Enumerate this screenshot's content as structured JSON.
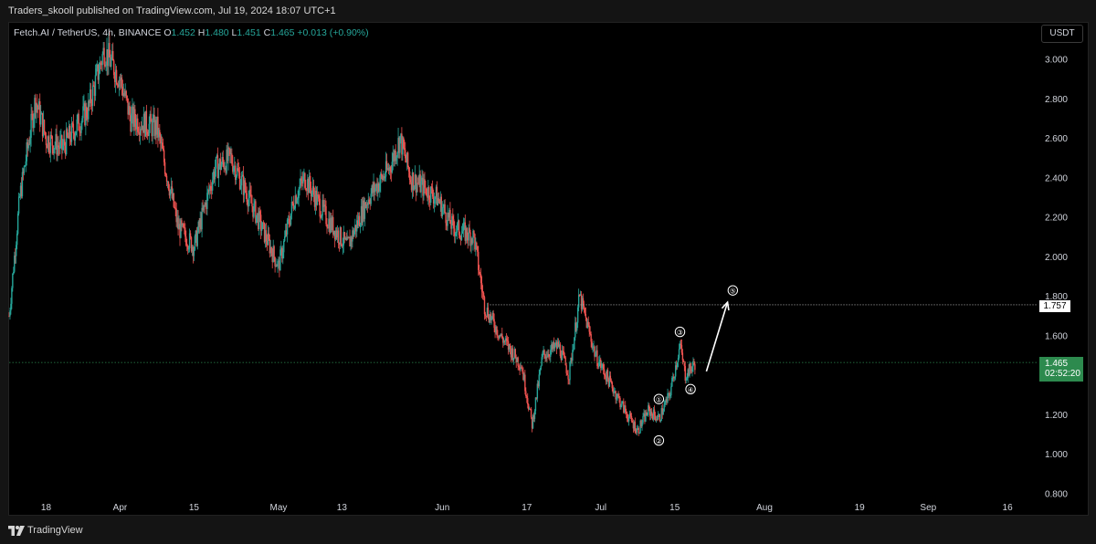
{
  "header": {
    "published_text": "Traders_skooll published on TradingView.com, Jul 19, 2024 18:07 UTC+1"
  },
  "symbol": {
    "name": "Fetch.AI / TetherUS, 4h, BINANCE",
    "open_label": "O",
    "open": "1.452",
    "high_label": "H",
    "high": "1.480",
    "low_label": "L",
    "low": "1.451",
    "close_label": "C",
    "close": "1.465",
    "change": "+0.013 (+0.90%)"
  },
  "currency_button": "USDT",
  "price_labels": {
    "reference": "1.757",
    "last_price": "1.465",
    "countdown": "02:52:20"
  },
  "footer": {
    "brand": "TradingView"
  },
  "colors": {
    "up": "#26a69a",
    "down": "#ef5350",
    "background": "#000000",
    "last_price_badge": "#2d8a4e"
  },
  "chart_data": {
    "type": "candlestick",
    "x_tick_labels": [
      "18",
      "Apr",
      "15",
      "May",
      "13",
      "Jun",
      "17",
      "Jul",
      "15",
      "Aug",
      "19",
      "Sep",
      "16"
    ],
    "y_tick_labels": [
      "3.000",
      "2.800",
      "2.600",
      "2.400",
      "2.200",
      "2.000",
      "1.800",
      "1.600",
      "1.400",
      "1.200",
      "1.000",
      "0.800"
    ],
    "y_ticks": [
      3.0,
      2.8,
      2.6,
      2.4,
      2.2,
      2.0,
      1.8,
      1.6,
      1.4,
      1.2,
      1.0,
      0.8
    ],
    "ylim": [
      0.8,
      3.2
    ],
    "x_start": "2024-03-11",
    "x_end": "2024-09-21",
    "last_close": 1.465,
    "reference_level": 1.757,
    "price_path": [
      {
        "date": "2024-03-11",
        "price": 1.7
      },
      {
        "date": "2024-03-13",
        "price": 2.3
      },
      {
        "date": "2024-03-16",
        "price": 2.8
      },
      {
        "date": "2024-03-18",
        "price": 2.6
      },
      {
        "date": "2024-03-21",
        "price": 2.55
      },
      {
        "date": "2024-03-26",
        "price": 2.75
      },
      {
        "date": "2024-03-29",
        "price": 3.05
      },
      {
        "date": "2024-04-01",
        "price": 2.9
      },
      {
        "date": "2024-04-03",
        "price": 2.7
      },
      {
        "date": "2024-04-08",
        "price": 2.65
      },
      {
        "date": "2024-04-12",
        "price": 2.15
      },
      {
        "date": "2024-04-15",
        "price": 2.05
      },
      {
        "date": "2024-04-19",
        "price": 2.45
      },
      {
        "date": "2024-04-22",
        "price": 2.5
      },
      {
        "date": "2024-04-27",
        "price": 2.2
      },
      {
        "date": "2024-05-01",
        "price": 1.95
      },
      {
        "date": "2024-05-04",
        "price": 2.3
      },
      {
        "date": "2024-05-06",
        "price": 2.4
      },
      {
        "date": "2024-05-10",
        "price": 2.2
      },
      {
        "date": "2024-05-14",
        "price": 2.05
      },
      {
        "date": "2024-05-18",
        "price": 2.3
      },
      {
        "date": "2024-05-22",
        "price": 2.45
      },
      {
        "date": "2024-05-24",
        "price": 2.6
      },
      {
        "date": "2024-05-26",
        "price": 2.4
      },
      {
        "date": "2024-05-31",
        "price": 2.3
      },
      {
        "date": "2024-06-03",
        "price": 2.15
      },
      {
        "date": "2024-06-07",
        "price": 2.1
      },
      {
        "date": "2024-06-09",
        "price": 1.75
      },
      {
        "date": "2024-06-12",
        "price": 1.6
      },
      {
        "date": "2024-06-16",
        "price": 1.45
      },
      {
        "date": "2024-06-18",
        "price": 1.15
      },
      {
        "date": "2024-06-20",
        "price": 1.5
      },
      {
        "date": "2024-06-23",
        "price": 1.55
      },
      {
        "date": "2024-06-25",
        "price": 1.4
      },
      {
        "date": "2024-06-27",
        "price": 1.8
      },
      {
        "date": "2024-06-30",
        "price": 1.5
      },
      {
        "date": "2024-07-03",
        "price": 1.35
      },
      {
        "date": "2024-07-06",
        "price": 1.2
      },
      {
        "date": "2024-07-08",
        "price": 1.12
      },
      {
        "date": "2024-07-10",
        "price": 1.22
      },
      {
        "date": "2024-07-12",
        "price": 1.18
      },
      {
        "date": "2024-07-14",
        "price": 1.3
      },
      {
        "date": "2024-07-16",
        "price": 1.55
      },
      {
        "date": "2024-07-17",
        "price": 1.4
      },
      {
        "date": "2024-07-19",
        "price": 1.465
      }
    ],
    "annotations": [
      {
        "label": "①",
        "date": "2024-07-12",
        "price": 1.28
      },
      {
        "label": "②",
        "date": "2024-07-12",
        "price": 1.07
      },
      {
        "label": "③",
        "date": "2024-07-16",
        "price": 1.62
      },
      {
        "label": "④",
        "date": "2024-07-18",
        "price": 1.33
      },
      {
        "label": "⑤",
        "date": "2024-07-26",
        "price": 1.83
      }
    ],
    "projection_arrow": {
      "from": {
        "date": "2024-07-21",
        "price": 1.42
      },
      "to": {
        "date": "2024-07-25",
        "price": 1.77
      }
    }
  }
}
